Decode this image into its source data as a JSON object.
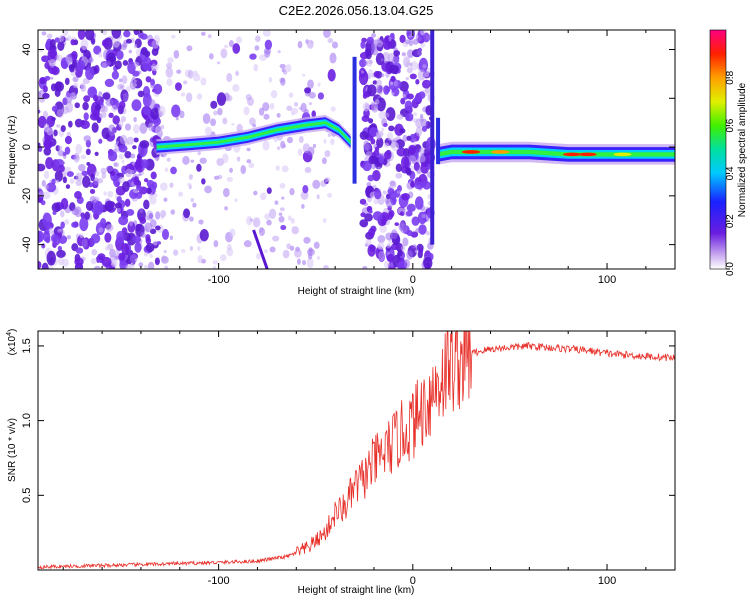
{
  "title": "C2E2.2026.056.13.04.G25",
  "chart_data": [
    {
      "type": "heatmap",
      "xlabel": "Height of straight line (km)",
      "ylabel": "Frequency (Hz)",
      "xlim": [
        -193,
        135
      ],
      "ylim": [
        -50,
        48
      ],
      "xticks": [
        -100,
        0,
        100
      ],
      "xtick_labels": [
        "-100",
        "0",
        "100"
      ],
      "yticks": [
        -40,
        -20,
        0,
        20,
        40
      ],
      "ytick_labels": [
        "-40",
        "-20",
        "0",
        "20",
        "40"
      ],
      "colorbar": {
        "label": "Normalized spectral amplitude",
        "range": [
          0.0,
          1.0
        ],
        "ticks": [
          0.0,
          0.2,
          0.4,
          0.6,
          0.8
        ],
        "tick_labels": [
          "0.0",
          "0.2",
          "0.4",
          "0.6",
          "0.8"
        ],
        "colormap": "rainbow (violet → blue → cyan → green → yellow → red → magenta)"
      },
      "ridge": [
        {
          "x": -132,
          "y": 0
        },
        {
          "x": -115,
          "y": 1
        },
        {
          "x": -100,
          "y": 2
        },
        {
          "x": -85,
          "y": 4
        },
        {
          "x": -70,
          "y": 7
        },
        {
          "x": -55,
          "y": 9
        },
        {
          "x": -45,
          "y": 10
        },
        {
          "x": -38,
          "y": 7
        },
        {
          "x": -32,
          "y": 2
        },
        {
          "x": 13,
          "y": -3
        },
        {
          "x": 20,
          "y": -2
        },
        {
          "x": 40,
          "y": -2
        },
        {
          "x": 60,
          "y": -2
        },
        {
          "x": 80,
          "y": -3
        },
        {
          "x": 100,
          "y": -3
        },
        {
          "x": 120,
          "y": -3
        },
        {
          "x": 135,
          "y": -3
        }
      ]
    },
    {
      "type": "line",
      "xlabel": "Height of straight line (km)",
      "ylabel": "SNR (10 * v/v)",
      "y_multiplier": "(x10",
      "y_multiplier_exp": "4",
      "y_multiplier_close": ")",
      "xlim": [
        -193,
        135
      ],
      "ylim": [
        0,
        1.6
      ],
      "xticks": [
        -100,
        0,
        100
      ],
      "xtick_labels": [
        "-100",
        "0",
        "100"
      ],
      "yticks": [
        0.5,
        1.0,
        1.5
      ],
      "ytick_labels": [
        "0.5",
        "1.0",
        "1.5"
      ],
      "color": "#e8302a",
      "series": [
        {
          "name": "SNR",
          "x": [
            -193,
            -160,
            -130,
            -100,
            -80,
            -65,
            -55,
            -45,
            -40,
            -35,
            -30,
            -25,
            -20,
            -15,
            -10,
            -5,
            0,
            5,
            10,
            15,
            20,
            30,
            40,
            50,
            60,
            70,
            80,
            90,
            100,
            110,
            120,
            135
          ],
          "y": [
            0.02,
            0.03,
            0.04,
            0.05,
            0.06,
            0.09,
            0.14,
            0.25,
            0.38,
            0.42,
            0.55,
            0.62,
            0.72,
            0.78,
            0.85,
            0.92,
            0.98,
            1.08,
            1.18,
            1.3,
            1.38,
            1.45,
            1.48,
            1.49,
            1.5,
            1.49,
            1.48,
            1.47,
            1.45,
            1.44,
            1.43,
            1.42
          ]
        }
      ]
    }
  ]
}
